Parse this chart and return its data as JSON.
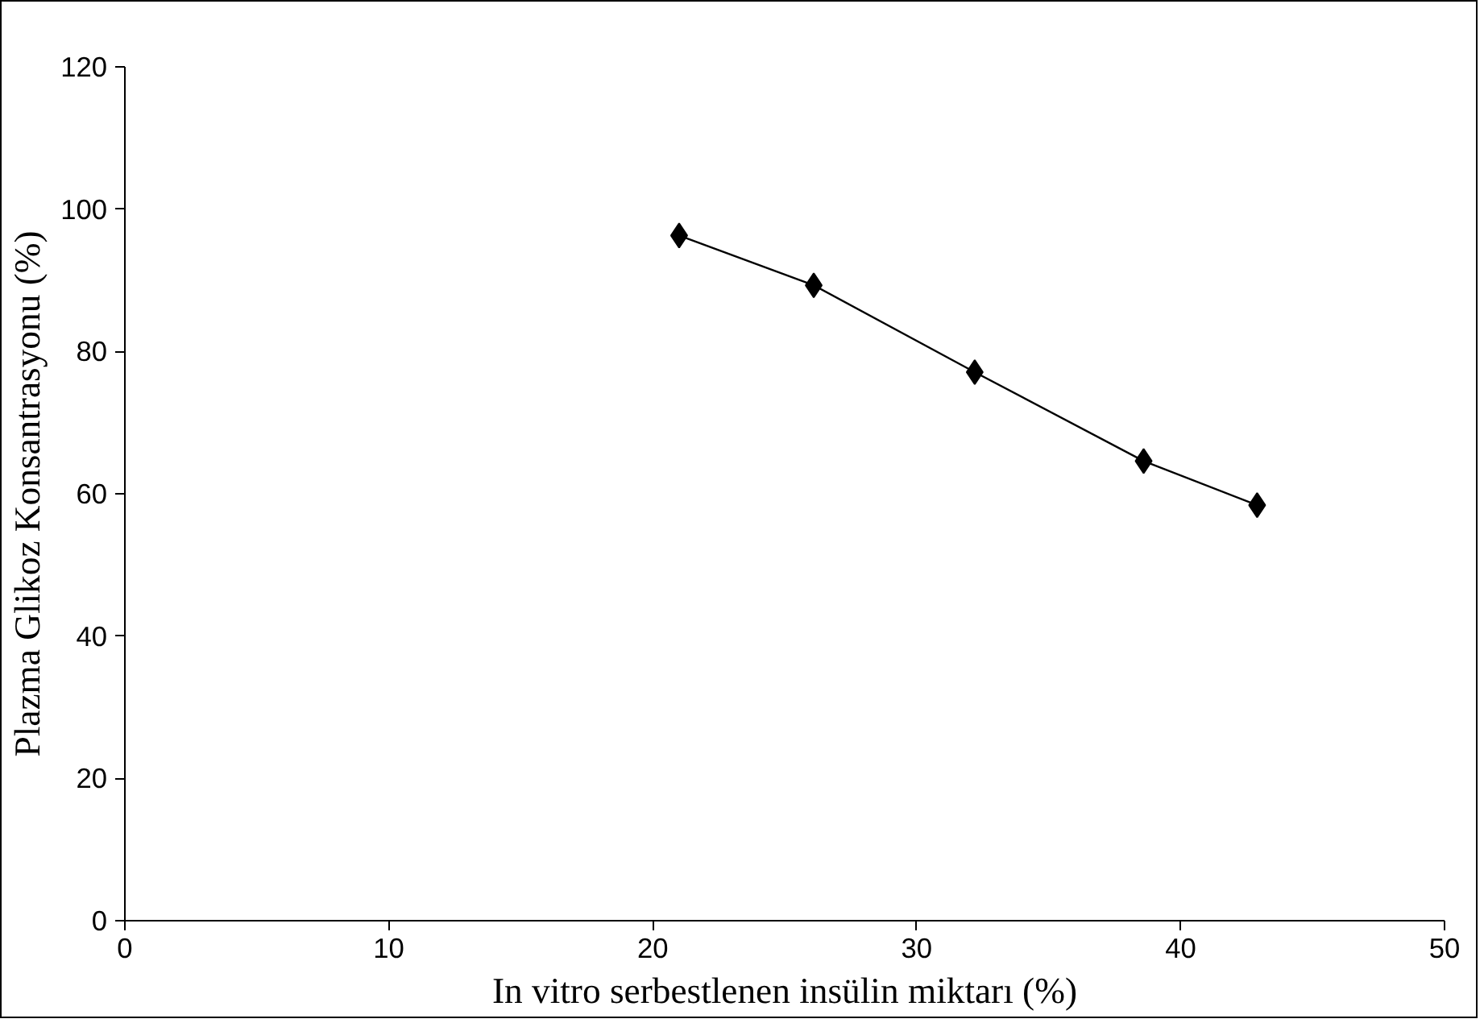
{
  "chart_data": {
    "type": "line",
    "xlabel": "In vitro serbestlenen insülin miktarı (%)",
    "ylabel": "Plazma Glikoz Konsantrasyonu (%)",
    "x": [
      21.0,
      26.1,
      32.2,
      38.6,
      42.9
    ],
    "series": [
      {
        "color": "#000000",
        "values": [
          96.3,
          89.3,
          77.1,
          64.6,
          58.4
        ]
      }
    ],
    "xlim": [
      0,
      50
    ],
    "xticks": [
      0,
      10,
      20,
      30,
      40,
      50
    ],
    "ylim": [
      0,
      120
    ],
    "yticks": [
      0,
      20,
      40,
      60,
      80,
      100,
      120
    ],
    "marker": "diamond",
    "line_style": "solid",
    "grid": false
  }
}
